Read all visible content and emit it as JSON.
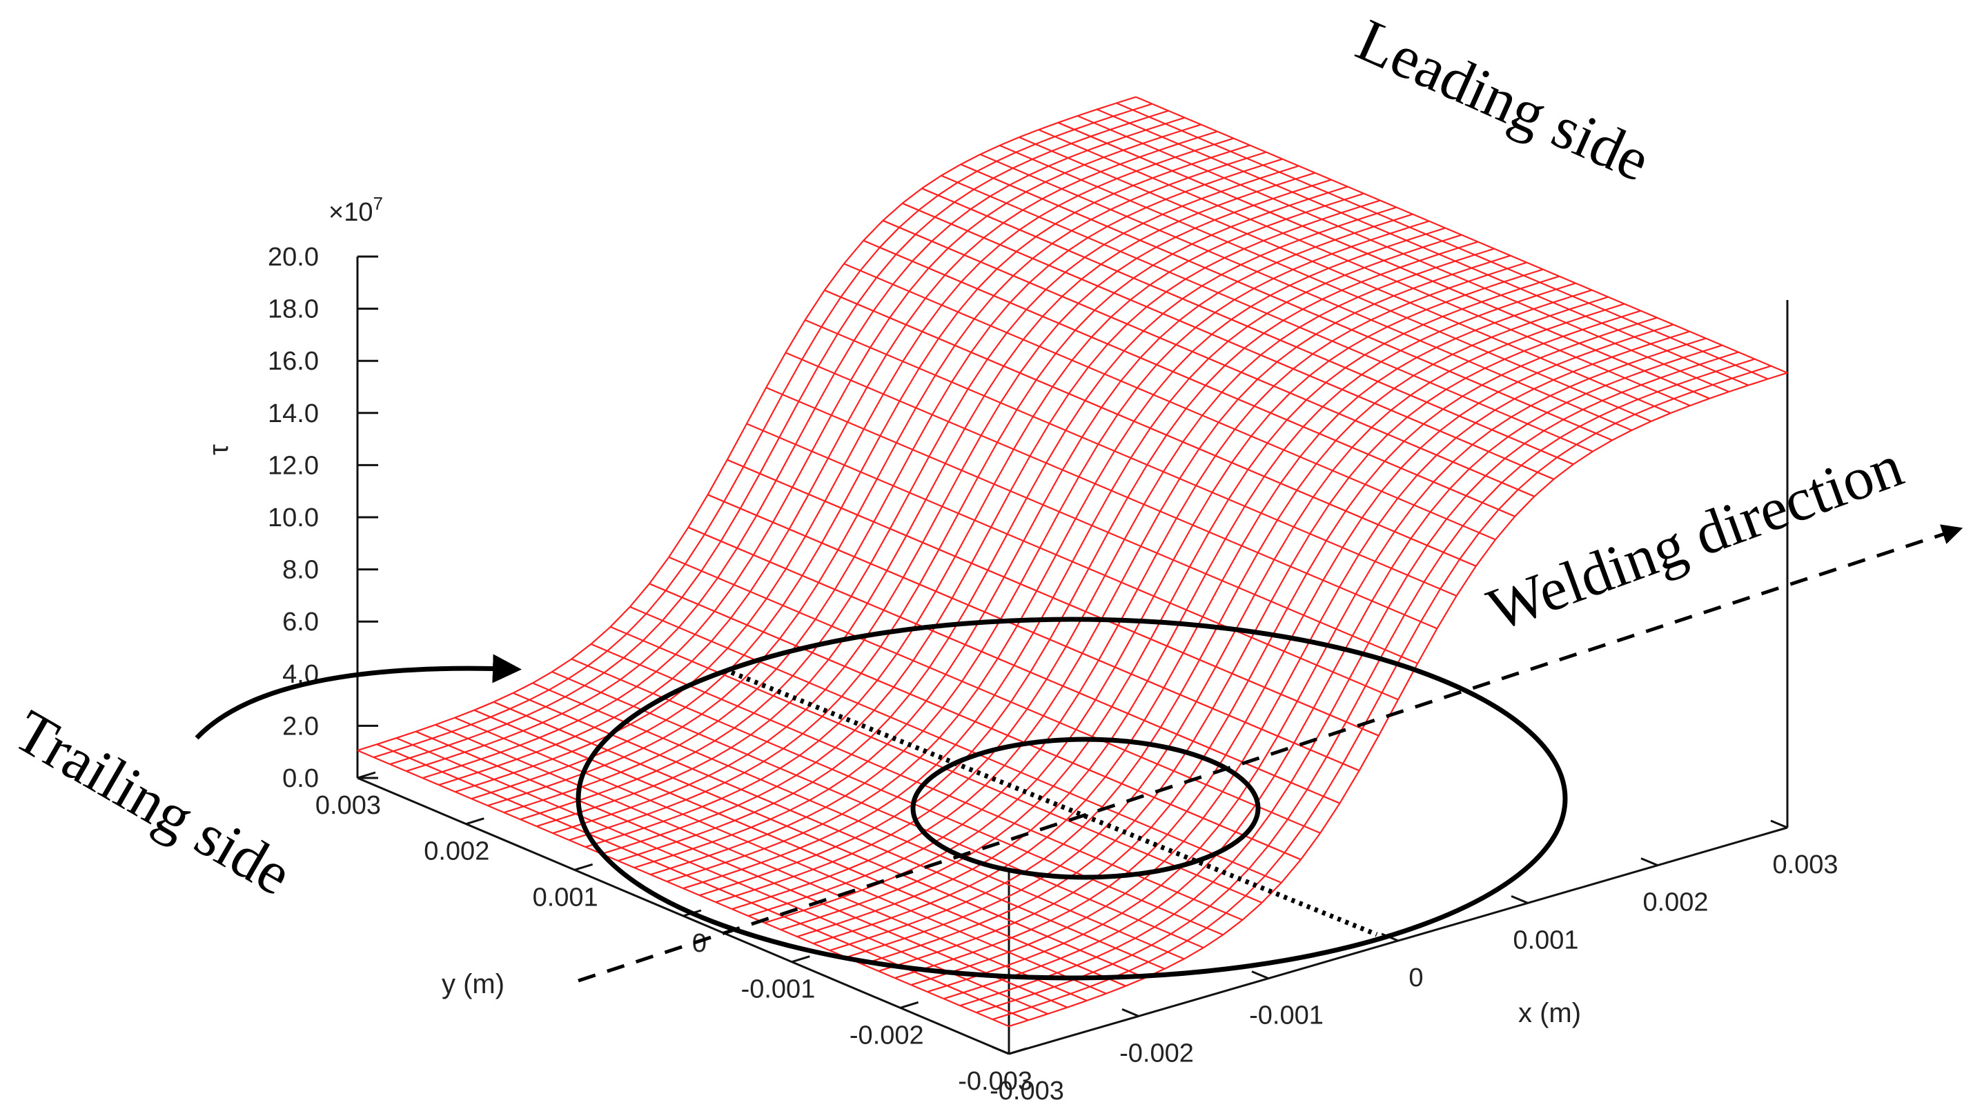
{
  "chart_data": {
    "type": "surface",
    "z_axis": {
      "label": "τ",
      "multiplier_label": "×10",
      "multiplier_exponent": "7",
      "ticks": [
        "20.0",
        "18.0",
        "16.0",
        "14.0",
        "12.0",
        "10.0",
        "8.0",
        "6.0",
        "4.0",
        "2.0",
        "0.0"
      ],
      "range": [
        0,
        20
      ]
    },
    "x_axis": {
      "label": "x (m)",
      "ticks": [
        "-0.003",
        "-0.002",
        "-0.001",
        "0",
        "0.001",
        "0.002",
        "0.003"
      ],
      "range": [
        -0.003,
        0.003
      ]
    },
    "y_axis": {
      "label": "y (m)",
      "ticks": [
        "0.003",
        "0.002",
        "0.001",
        "0",
        "-0.001",
        "-0.002",
        "-0.003"
      ],
      "range": [
        -0.003,
        0.003
      ]
    },
    "surface": {
      "description_shape": "sigmoid step in y",
      "z_at_trailing_side": 1.0,
      "z_at_leading_side": 17.5,
      "transition_center_y": 0.0,
      "color": "#ff2020",
      "grid_columns": 40,
      "grid_rows": 40
    },
    "annotations": {
      "leading": "Leading side",
      "trailing": "Trailing side",
      "welding": "Welding direction"
    }
  }
}
